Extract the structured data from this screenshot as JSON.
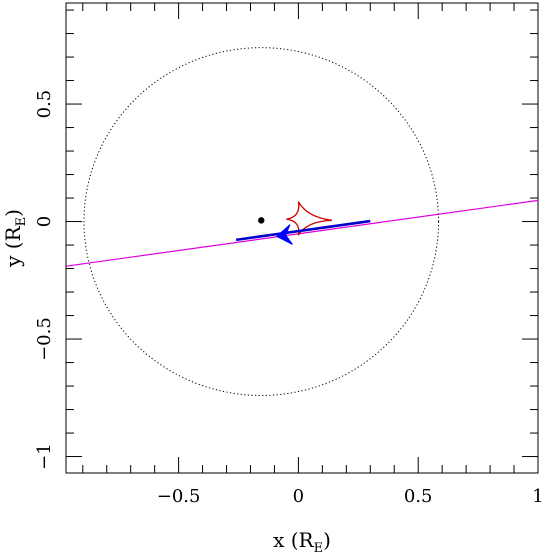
{
  "chart_data": {
    "type": "line",
    "title": "",
    "xlabel": "x (R",
    "xlabel_sub": "E",
    "xlabel_close": ")",
    "ylabel": "y (R",
    "ylabel_sub": "E",
    "ylabel_close": ")",
    "xlim": [
      -0.97,
      1.0
    ],
    "ylim": [
      -1.07,
      0.93
    ],
    "grid": false,
    "x_ticks": [
      {
        "value": -0.5,
        "label": "−0.5"
      },
      {
        "value": 0,
        "label": "0"
      },
      {
        "value": 0.5,
        "label": "0.5"
      },
      {
        "value": 1,
        "label": "1"
      }
    ],
    "y_ticks": [
      {
        "value": -1,
        "label": "−1"
      },
      {
        "value": -0.5,
        "label": "−0.5"
      },
      {
        "value": 0,
        "label": "0"
      },
      {
        "value": 0.5,
        "label": "0.5"
      }
    ],
    "minor_tick_step": 0.1,
    "einstein_ring": {
      "cx": -0.155,
      "cy": 0.0,
      "r": 0.74,
      "color": "#000000",
      "style": "dotted"
    },
    "lens_point": {
      "x": -0.155,
      "y": 0.005,
      "color": "#000000"
    },
    "caustic": {
      "color": "#cc0000",
      "cusps": [
        {
          "x": 0.0,
          "y": 0.085
        },
        {
          "x": 0.14,
          "y": 0.005
        },
        {
          "x": 0.0,
          "y": -0.058
        },
        {
          "x": -0.05,
          "y": 0.01
        }
      ]
    },
    "source_trajectory": {
      "color": "#dd00dd",
      "x": [
        -0.97,
        1.0
      ],
      "y": [
        -0.19,
        0.09
      ]
    },
    "source_track": {
      "color": "#0000cc",
      "x": [
        -0.26,
        0.3
      ],
      "y": [
        -0.078,
        0.002
      ]
    },
    "direction_arrow": {
      "x": -0.03,
      "y": -0.055,
      "dx": -0.06,
      "dy": -0.008,
      "color": "#0000ff"
    }
  }
}
